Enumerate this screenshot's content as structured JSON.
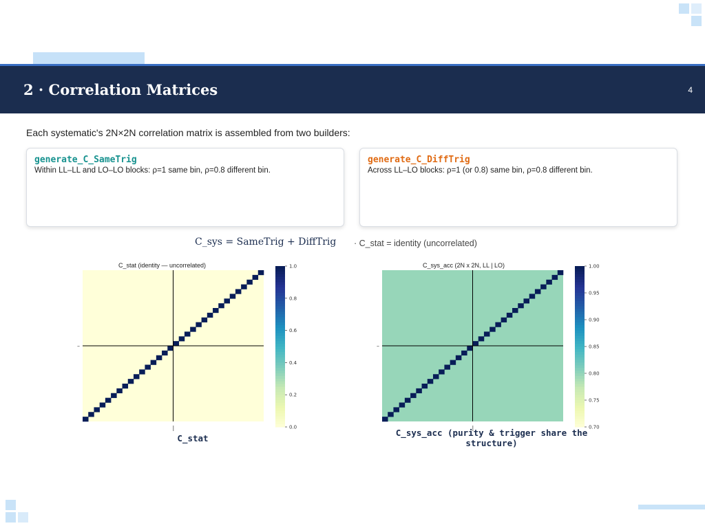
{
  "slide": {
    "title": "2 · Correlation Matrices",
    "page_number": "4",
    "intro": "Each systematic's 2N×2N correlation matrix is assembled from two builders:"
  },
  "cards": [
    {
      "name": "generate_C_SameTrig",
      "color": "#17928f",
      "description": "Within LL–LL and LO–LO blocks: ρ=1 same bin, ρ=0.8 different bin."
    },
    {
      "name": "generate_C_DiffTrig",
      "color": "#e06b14",
      "description": "Across LL–LO blocks: ρ=1 (or 0.8) same bin, ρ=0.8 different bin."
    }
  ],
  "formula": {
    "main": "C_sys = SameTrig + DiffTrig",
    "note": "· C_stat = identity (uncorrelated)"
  },
  "chart_data": [
    {
      "type": "heatmap",
      "title": "C_stat  (identity — uncorrelated)",
      "matrix": "identity",
      "size": 32,
      "off_diagonal_value": 0.0,
      "diagonal_value": 1.0,
      "colorbar_ticks": [
        "0.0",
        "0.2",
        "0.4",
        "0.6",
        "0.8",
        "1.0"
      ],
      "colorbar_range": [
        0.0,
        1.0
      ],
      "y_tick": "–",
      "x_tick": "|",
      "caption": "C_stat",
      "colormap": "YlGnBu"
    },
    {
      "type": "heatmap",
      "title": "C_sys_acc  (2N x 2N, LL | LO)",
      "matrix": "diag 1.0, off-diagonal 0.8",
      "size": 32,
      "off_diagonal_value": 0.8,
      "diagonal_value": 1.0,
      "colorbar_ticks": [
        "0.70",
        "0.75",
        "0.80",
        "0.85",
        "0.90",
        "0.95",
        "1.00"
      ],
      "colorbar_range": [
        0.7,
        1.0
      ],
      "y_tick": "–",
      "x_tick": "|",
      "caption": "C_sys_acc  (purity & trigger share the structure)",
      "colormap": "YlGnBu"
    }
  ]
}
